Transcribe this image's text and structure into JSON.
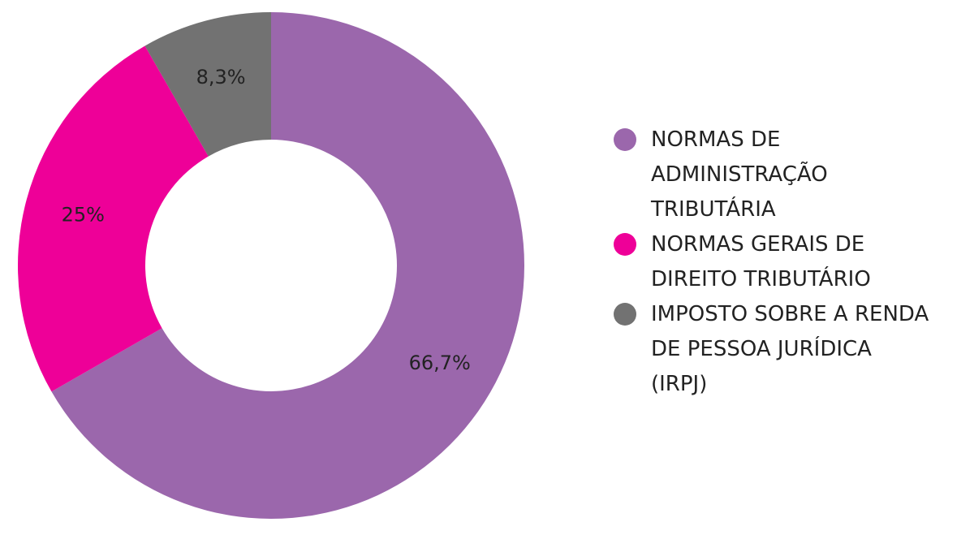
{
  "chart_data": {
    "type": "pie",
    "donut": true,
    "start_angle_deg": 0,
    "direction": "clockwise",
    "legend_position": "right",
    "slices": [
      {
        "label": "NORMAS DE ADMINISTRAÇÃO TRIBUTÁRIA",
        "legend_lines": [
          "NORMAS DE",
          "ADMINISTRAÇÃO",
          "TRIBUTÁRIA"
        ],
        "value": 66.7,
        "display": "66,7%",
        "color": "#9b67ac"
      },
      {
        "label": "NORMAS GERAIS DE DIREITO TRIBUTÁRIO",
        "legend_lines": [
          "NORMAS GERAIS DE",
          "DIREITO TRIBUTÁRIO"
        ],
        "value": 25,
        "display": "25%",
        "color": "#ee0098"
      },
      {
        "label": "IMPOSTO SOBRE A RENDA DE PESSOA JURÍDICA (IRPJ)",
        "legend_lines": [
          "IMPOSTO SOBRE A RENDA",
          "DE PESSOA JURÍDICA",
          "(IRPJ)"
        ],
        "value": 8.3,
        "display": "8,3%",
        "color": "#727272"
      }
    ]
  }
}
